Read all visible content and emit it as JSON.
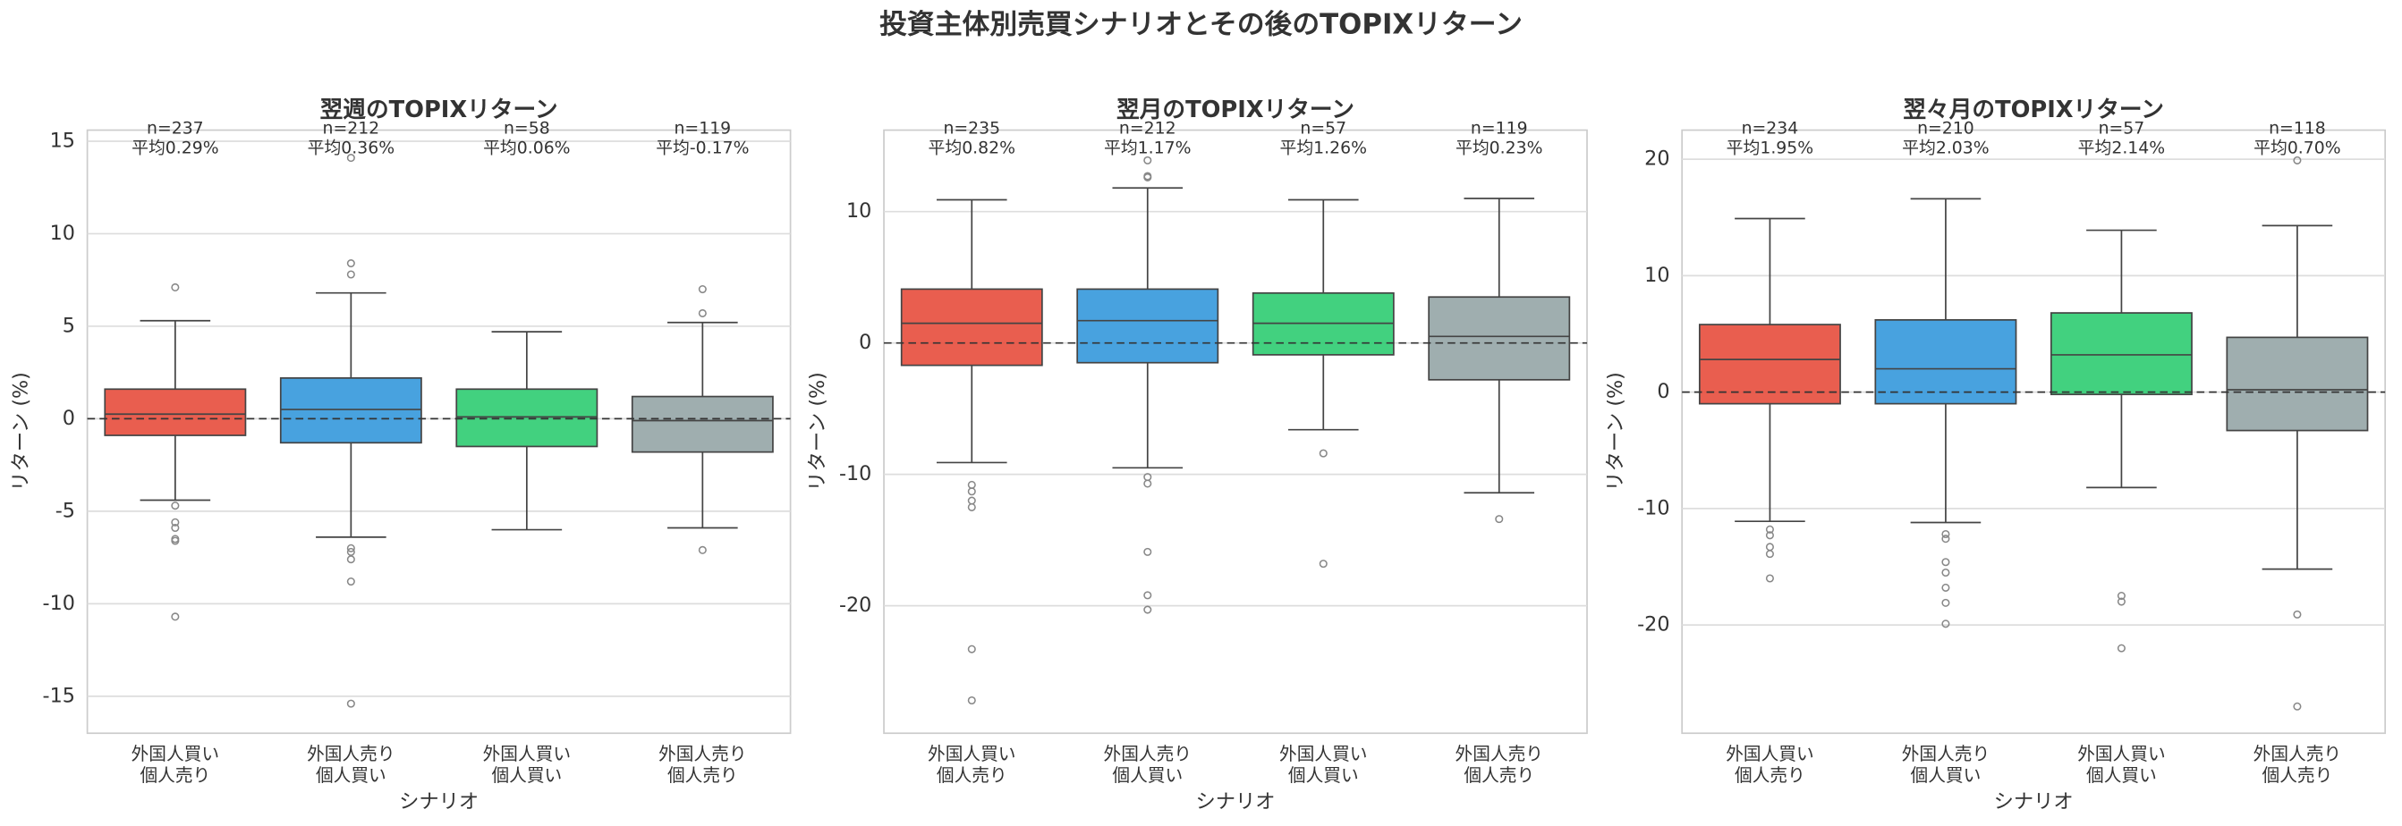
{
  "title": "投資主体別売買シナリオとその後のTOPIXリターン",
  "chart_data": [
    {
      "type": "box",
      "title": "翌週のTOPIXリターン",
      "xlabel": "シナリオ",
      "ylabel": "リターン (%)",
      "categories": [
        "外国人買い\n個人売り",
        "外国人売り\n個人買い",
        "外国人買い\n個人買い",
        "外国人売り\n個人売り"
      ],
      "colors": [
        "#e74c3c",
        "#3498db",
        "#2ecc71",
        "#95a5a6"
      ],
      "boxes": [
        {
          "whislo": -4.4,
          "q1": -0.9,
          "med": 0.25,
          "q3": 1.6,
          "whishi": 5.3,
          "fliers": [
            7.1,
            -4.7,
            -5.6,
            -5.9,
            -6.5,
            -6.6,
            -10.7
          ]
        },
        {
          "whislo": -6.4,
          "q1": -1.3,
          "med": 0.5,
          "q3": 2.2,
          "whishi": 6.8,
          "fliers": [
            14.1,
            8.4,
            7.8,
            -7.0,
            -7.2,
            -7.6,
            -8.8,
            -15.4
          ]
        },
        {
          "whislo": -6.0,
          "q1": -1.5,
          "med": 0.1,
          "q3": 1.6,
          "whishi": 4.7,
          "fliers": []
        },
        {
          "whislo": -5.9,
          "q1": -1.8,
          "med": -0.1,
          "q3": 1.2,
          "whishi": 5.2,
          "fliers": [
            7.0,
            5.7,
            -7.1
          ]
        }
      ],
      "annotations": [
        {
          "n": "n=237",
          "mean": "平均0.29%"
        },
        {
          "n": "n=212",
          "mean": "平均0.36%"
        },
        {
          "n": "n=58",
          "mean": "平均0.06%"
        },
        {
          "n": "n=119",
          "mean": "平均-0.17%"
        }
      ],
      "hline": 0,
      "ylim": [
        -17.0,
        15.6
      ],
      "yticks": [
        -15,
        -10,
        -5,
        0,
        5,
        10,
        15
      ],
      "grid": true
    },
    {
      "type": "box",
      "title": "翌月のTOPIXリターン",
      "xlabel": "シナリオ",
      "ylabel": "リターン (%)",
      "categories": [
        "外国人買い\n個人売り",
        "外国人売り\n個人買い",
        "外国人買い\n個人買い",
        "外国人売り\n個人売り"
      ],
      "colors": [
        "#e74c3c",
        "#3498db",
        "#2ecc71",
        "#95a5a6"
      ],
      "boxes": [
        {
          "whislo": -9.1,
          "q1": -1.7,
          "med": 1.5,
          "q3": 4.1,
          "whishi": 10.9,
          "fliers": [
            -10.8,
            -11.3,
            -12.0,
            -12.5,
            -23.3,
            -27.2
          ]
        },
        {
          "whislo": -9.5,
          "q1": -1.5,
          "med": 1.7,
          "q3": 4.1,
          "whishi": 11.8,
          "fliers": [
            13.9,
            12.7,
            12.6,
            -10.2,
            -10.7,
            -15.9,
            -19.2,
            -20.3
          ]
        },
        {
          "whislo": -6.6,
          "q1": -0.9,
          "med": 1.5,
          "q3": 3.8,
          "whishi": 10.9,
          "fliers": [
            -8.4,
            -16.8
          ]
        },
        {
          "whislo": -11.4,
          "q1": -2.8,
          "med": 0.5,
          "q3": 3.5,
          "whishi": 11.0,
          "fliers": [
            -13.4
          ]
        }
      ],
      "annotations": [
        {
          "n": "n=235",
          "mean": "平均0.82%"
        },
        {
          "n": "n=212",
          "mean": "平均1.17%"
        },
        {
          "n": "n=57",
          "mean": "平均1.26%"
        },
        {
          "n": "n=119",
          "mean": "平均0.23%"
        }
      ],
      "hline": 0,
      "ylim": [
        -29.7,
        16.2
      ],
      "yticks": [
        -20,
        -10,
        0,
        10
      ],
      "grid": true
    },
    {
      "type": "box",
      "title": "翌々月のTOPIXリターン",
      "xlabel": "シナリオ",
      "ylabel": "リターン (%)",
      "categories": [
        "外国人買い\n個人売り",
        "外国人売り\n個人買い",
        "外国人買い\n個人買い",
        "外国人売り\n個人売り"
      ],
      "colors": [
        "#e74c3c",
        "#3498db",
        "#2ecc71",
        "#95a5a6"
      ],
      "boxes": [
        {
          "whislo": -11.1,
          "q1": -1.0,
          "med": 2.8,
          "q3": 5.8,
          "whishi": 14.9,
          "fliers": [
            -11.8,
            -12.3,
            -13.3,
            -13.9,
            -16.0
          ]
        },
        {
          "whislo": -11.2,
          "q1": -1.0,
          "med": 2.0,
          "q3": 6.2,
          "whishi": 16.6,
          "fliers": [
            -12.2,
            -12.6,
            -14.6,
            -15.5,
            -16.8,
            -18.1,
            -19.9
          ]
        },
        {
          "whislo": -8.2,
          "q1": -0.2,
          "med": 3.2,
          "q3": 6.8,
          "whishi": 13.9,
          "fliers": [
            -17.5,
            -18.0,
            -22.0
          ]
        },
        {
          "whislo": -15.2,
          "q1": -3.3,
          "med": 0.2,
          "q3": 4.7,
          "whishi": 14.3,
          "fliers": [
            19.9,
            -19.1,
            -27.0
          ]
        }
      ],
      "annotations": [
        {
          "n": "n=234",
          "mean": "平均1.95%"
        },
        {
          "n": "n=210",
          "mean": "平均2.03%"
        },
        {
          "n": "n=57",
          "mean": "平均2.14%"
        },
        {
          "n": "n=118",
          "mean": "平均0.70%"
        }
      ],
      "hline": 0,
      "ylim": [
        -29.3,
        22.5
      ],
      "yticks": [
        -20,
        -10,
        0,
        10,
        20
      ],
      "grid": true
    }
  ]
}
